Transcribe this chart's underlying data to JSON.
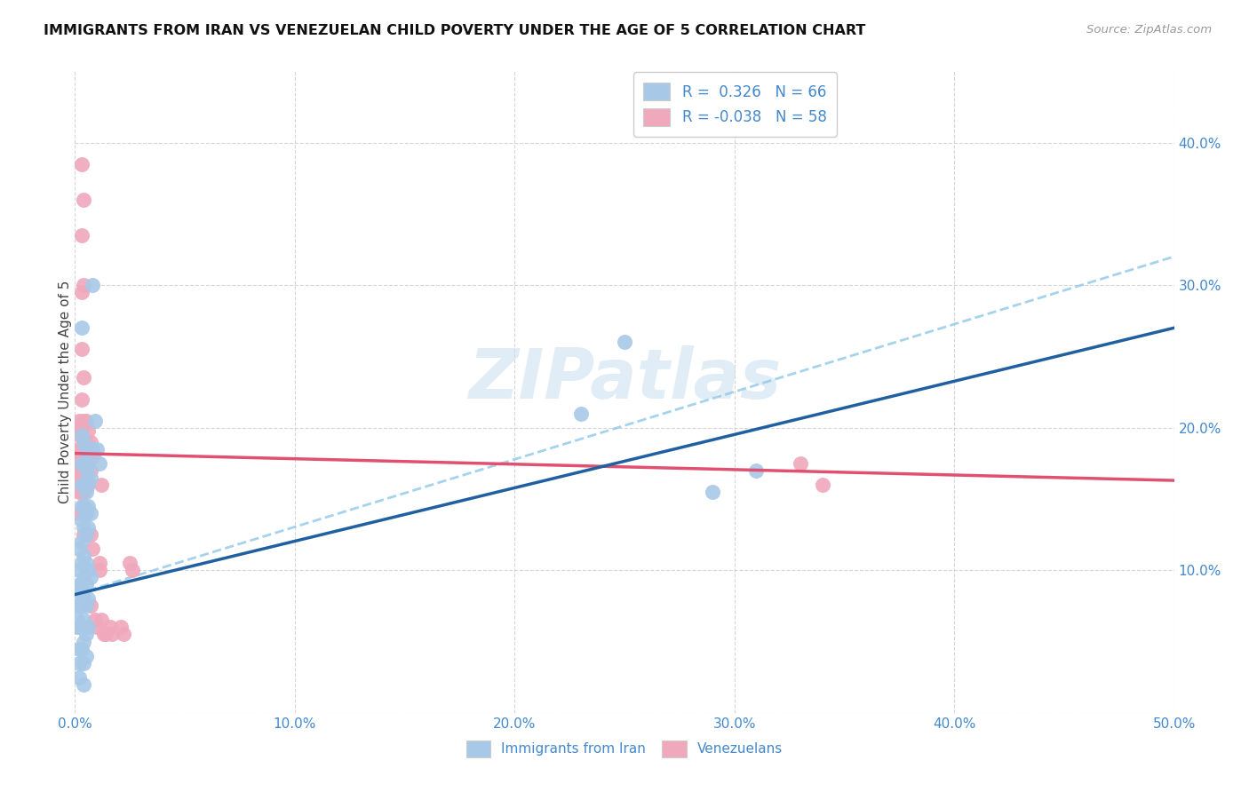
{
  "title": "IMMIGRANTS FROM IRAN VS VENEZUELAN CHILD POVERTY UNDER THE AGE OF 5 CORRELATION CHART",
  "source": "Source: ZipAtlas.com",
  "ylabel": "Child Poverty Under the Age of 5",
  "xlim": [
    0.0,
    0.5
  ],
  "ylim": [
    0.0,
    0.45
  ],
  "xticks": [
    0.0,
    0.1,
    0.2,
    0.3,
    0.4,
    0.5
  ],
  "yticks": [
    0.0,
    0.1,
    0.2,
    0.3,
    0.4
  ],
  "xticklabels": [
    "0.0%",
    "10.0%",
    "20.0%",
    "30.0%",
    "40.0%",
    "50.0%"
  ],
  "yticklabels": [
    "",
    "10.0%",
    "20.0%",
    "30.0%",
    "40.0%"
  ],
  "legend1_label": "R =  0.326   N = 66",
  "legend2_label": "R = -0.038   N = 58",
  "legend_bottom_label1": "Immigrants from Iran",
  "legend_bottom_label2": "Venezuelans",
  "blue_color": "#A8C8E8",
  "pink_color": "#F0A8BC",
  "blue_line_color": "#2060A0",
  "pink_line_color": "#E05070",
  "dashed_line_color": "#90C8E8",
  "title_color": "#111111",
  "axis_color": "#4488CC",
  "watermark": "ZIPatlas",
  "blue_scatter": [
    [
      0.001,
      0.085
    ],
    [
      0.001,
      0.075
    ],
    [
      0.001,
      0.065
    ],
    [
      0.001,
      0.06
    ],
    [
      0.002,
      0.115
    ],
    [
      0.002,
      0.1
    ],
    [
      0.002,
      0.09
    ],
    [
      0.002,
      0.075
    ],
    [
      0.002,
      0.06
    ],
    [
      0.002,
      0.045
    ],
    [
      0.002,
      0.035
    ],
    [
      0.002,
      0.025
    ],
    [
      0.003,
      0.27
    ],
    [
      0.003,
      0.195
    ],
    [
      0.003,
      0.175
    ],
    [
      0.003,
      0.16
    ],
    [
      0.003,
      0.145
    ],
    [
      0.003,
      0.135
    ],
    [
      0.003,
      0.12
    ],
    [
      0.003,
      0.105
    ],
    [
      0.003,
      0.09
    ],
    [
      0.003,
      0.075
    ],
    [
      0.003,
      0.06
    ],
    [
      0.003,
      0.045
    ],
    [
      0.004,
      0.19
    ],
    [
      0.004,
      0.175
    ],
    [
      0.004,
      0.16
    ],
    [
      0.004,
      0.145
    ],
    [
      0.004,
      0.13
    ],
    [
      0.004,
      0.11
    ],
    [
      0.004,
      0.095
    ],
    [
      0.004,
      0.08
    ],
    [
      0.004,
      0.065
    ],
    [
      0.004,
      0.05
    ],
    [
      0.004,
      0.035
    ],
    [
      0.004,
      0.02
    ],
    [
      0.005,
      0.185
    ],
    [
      0.005,
      0.17
    ],
    [
      0.005,
      0.155
    ],
    [
      0.005,
      0.14
    ],
    [
      0.005,
      0.125
    ],
    [
      0.005,
      0.105
    ],
    [
      0.005,
      0.09
    ],
    [
      0.005,
      0.075
    ],
    [
      0.005,
      0.055
    ],
    [
      0.005,
      0.04
    ],
    [
      0.006,
      0.175
    ],
    [
      0.006,
      0.16
    ],
    [
      0.006,
      0.145
    ],
    [
      0.006,
      0.13
    ],
    [
      0.006,
      0.1
    ],
    [
      0.006,
      0.08
    ],
    [
      0.006,
      0.06
    ],
    [
      0.007,
      0.185
    ],
    [
      0.007,
      0.165
    ],
    [
      0.007,
      0.14
    ],
    [
      0.007,
      0.095
    ],
    [
      0.008,
      0.3
    ],
    [
      0.008,
      0.185
    ],
    [
      0.009,
      0.205
    ],
    [
      0.01,
      0.185
    ],
    [
      0.011,
      0.175
    ],
    [
      0.23,
      0.21
    ],
    [
      0.25,
      0.26
    ],
    [
      0.29,
      0.155
    ],
    [
      0.31,
      0.17
    ]
  ],
  "pink_scatter": [
    [
      0.001,
      0.2
    ],
    [
      0.001,
      0.185
    ],
    [
      0.001,
      0.175
    ],
    [
      0.001,
      0.165
    ],
    [
      0.002,
      0.205
    ],
    [
      0.002,
      0.195
    ],
    [
      0.002,
      0.183
    ],
    [
      0.002,
      0.168
    ],
    [
      0.002,
      0.155
    ],
    [
      0.002,
      0.14
    ],
    [
      0.003,
      0.385
    ],
    [
      0.003,
      0.335
    ],
    [
      0.003,
      0.295
    ],
    [
      0.003,
      0.255
    ],
    [
      0.003,
      0.22
    ],
    [
      0.003,
      0.2
    ],
    [
      0.003,
      0.185
    ],
    [
      0.003,
      0.17
    ],
    [
      0.003,
      0.155
    ],
    [
      0.004,
      0.36
    ],
    [
      0.004,
      0.3
    ],
    [
      0.004,
      0.235
    ],
    [
      0.004,
      0.205
    ],
    [
      0.004,
      0.185
    ],
    [
      0.004,
      0.17
    ],
    [
      0.004,
      0.155
    ],
    [
      0.004,
      0.14
    ],
    [
      0.004,
      0.125
    ],
    [
      0.005,
      0.205
    ],
    [
      0.005,
      0.19
    ],
    [
      0.005,
      0.172
    ],
    [
      0.005,
      0.158
    ],
    [
      0.005,
      0.143
    ],
    [
      0.006,
      0.198
    ],
    [
      0.006,
      0.18
    ],
    [
      0.006,
      0.162
    ],
    [
      0.007,
      0.19
    ],
    [
      0.007,
      0.17
    ],
    [
      0.007,
      0.125
    ],
    [
      0.007,
      0.075
    ],
    [
      0.008,
      0.18
    ],
    [
      0.008,
      0.115
    ],
    [
      0.009,
      0.065
    ],
    [
      0.01,
      0.06
    ],
    [
      0.011,
      0.105
    ],
    [
      0.011,
      0.1
    ],
    [
      0.012,
      0.16
    ],
    [
      0.012,
      0.065
    ],
    [
      0.013,
      0.055
    ],
    [
      0.014,
      0.055
    ],
    [
      0.016,
      0.06
    ],
    [
      0.017,
      0.055
    ],
    [
      0.021,
      0.06
    ],
    [
      0.022,
      0.055
    ],
    [
      0.025,
      0.105
    ],
    [
      0.026,
      0.1
    ],
    [
      0.33,
      0.175
    ],
    [
      0.34,
      0.16
    ]
  ],
  "blue_trendline_x": [
    0.0,
    0.5
  ],
  "blue_trendline_y": [
    0.083,
    0.27
  ],
  "pink_trendline_x": [
    0.0,
    0.5
  ],
  "pink_trendline_y": [
    0.182,
    0.163
  ],
  "dashed_trendline_x": [
    0.0,
    0.5
  ],
  "dashed_trendline_y": [
    0.083,
    0.32
  ]
}
